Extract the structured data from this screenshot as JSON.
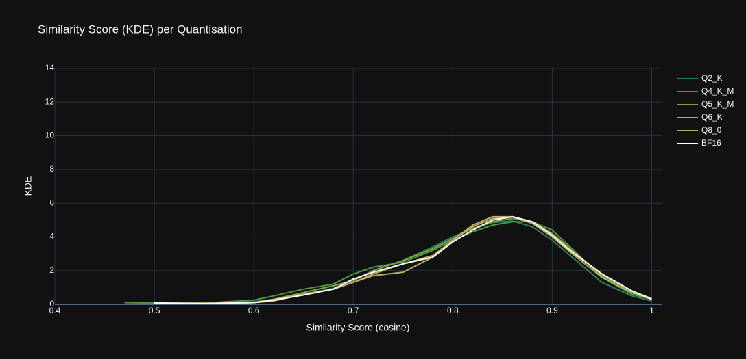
{
  "chart_data": {
    "type": "line",
    "title": "Similarity Score (KDE) per Quantisation",
    "x_label": "Similarity Score (cosine)",
    "y_label": "KDE",
    "x": [
      0.47,
      0.5,
      0.55,
      0.6,
      0.62,
      0.65,
      0.68,
      0.7,
      0.72,
      0.75,
      0.78,
      0.8,
      0.82,
      0.84,
      0.86,
      0.88,
      0.9,
      0.92,
      0.95,
      0.98,
      1.0
    ],
    "series": [
      {
        "name": "Q2_K",
        "color": "#2f7f5f",
        "values": [
          0.1,
          0.08,
          0.05,
          0.15,
          0.3,
          0.6,
          0.95,
          1.4,
          2.0,
          2.6,
          3.4,
          4.0,
          4.5,
          4.85,
          4.95,
          4.6,
          3.8,
          2.8,
          1.3,
          0.5,
          0.2
        ]
      },
      {
        "name": "Q4_K_M",
        "color": "#4f9a40",
        "values": [
          0.1,
          0.08,
          0.08,
          0.25,
          0.5,
          0.9,
          1.2,
          1.8,
          2.2,
          2.5,
          3.2,
          3.8,
          4.3,
          4.7,
          4.9,
          4.9,
          4.4,
          3.3,
          1.6,
          0.6,
          0.3
        ]
      },
      {
        "name": "Q5_K_M",
        "color": "#7ea544",
        "values": [
          null,
          0.08,
          0.05,
          0.1,
          0.3,
          0.7,
          1.1,
          1.4,
          2.0,
          2.6,
          3.3,
          3.9,
          4.5,
          4.9,
          5.1,
          4.9,
          4.2,
          3.2,
          1.7,
          0.7,
          0.3
        ]
      },
      {
        "name": "Q6_K",
        "color": "#b3b35c",
        "values": [
          null,
          0.08,
          0.05,
          0.1,
          0.2,
          0.6,
          0.9,
          1.3,
          1.7,
          1.9,
          2.8,
          3.8,
          4.6,
          5.1,
          5.2,
          4.8,
          4.0,
          3.0,
          1.6,
          0.7,
          0.3
        ]
      },
      {
        "name": "Q8_0",
        "color": "#c4a66c",
        "values": [
          null,
          0.08,
          0.05,
          0.1,
          0.3,
          0.6,
          0.9,
          1.3,
          1.8,
          2.4,
          2.9,
          3.8,
          4.7,
          5.2,
          5.2,
          4.8,
          4.0,
          3.1,
          1.8,
          0.8,
          0.35
        ]
      },
      {
        "name": "BF16",
        "color": "#ffffff",
        "values": [
          null,
          0.08,
          0.05,
          0.1,
          0.25,
          0.55,
          0.9,
          1.5,
          1.9,
          2.4,
          2.8,
          3.7,
          4.4,
          5.0,
          5.2,
          4.9,
          4.1,
          3.1,
          1.8,
          0.8,
          0.3
        ]
      }
    ],
    "xlim": [
      0.4,
      1.01
    ],
    "xticks": [
      0.4,
      0.5,
      0.6,
      0.7,
      0.8,
      0.9,
      1
    ],
    "ylim": [
      0,
      14
    ],
    "yticks": [
      0,
      2,
      4,
      6,
      8,
      10,
      12,
      14
    ],
    "grid": true
  }
}
